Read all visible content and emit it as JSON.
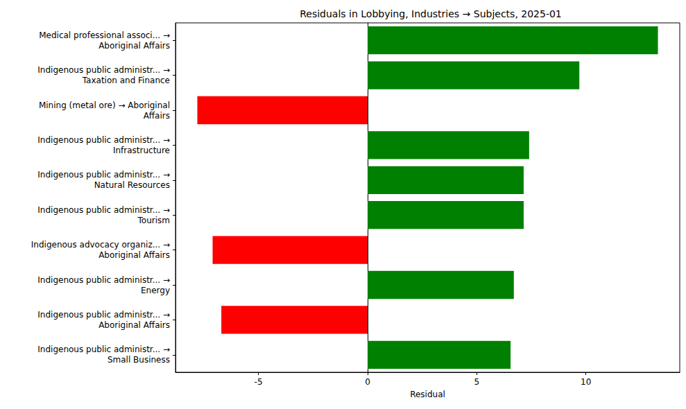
{
  "chart_data": {
    "type": "bar",
    "orientation": "horizontal",
    "title": "Residuals in Lobbying, Industries → Subjects, 2025-01",
    "x_label": "Residual",
    "categories": [
      "Medical professional associ... →\nAboriginal Affairs",
      "Indigenous public administr... →\nTaxation and Finance",
      "Mining (metal ore) → Aboriginal\nAffairs",
      "Indigenous public administr... →\nInfrastructure",
      "Indigenous public administr... →\nNatural Resources",
      "Indigenous public administr... →\nTourism",
      "Indigenous advocacy organiz... →\nAboriginal Affairs",
      "Indigenous public administr... →\nEnergy",
      "Indigenous public administr... →\nAboriginal Affairs",
      "Indigenous public administr... →\nSmall Business"
    ],
    "values": [
      13.3,
      9.7,
      -7.8,
      7.4,
      7.15,
      7.15,
      -7.1,
      6.7,
      -6.7,
      6.55
    ],
    "colors": [
      "green",
      "green",
      "red",
      "green",
      "green",
      "green",
      "red",
      "green",
      "red",
      "green"
    ],
    "xlim": [
      -8.8,
      14.3
    ],
    "xticks": [
      -5,
      0,
      5,
      10
    ],
    "grid": false
  }
}
